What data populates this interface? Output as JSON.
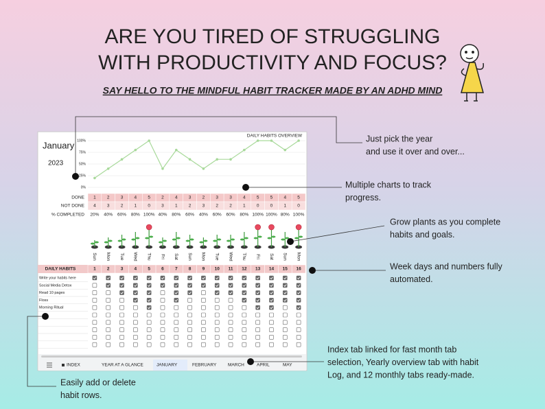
{
  "header": {
    "title_lines": [
      "ARE YOU TIRED OF STRUGGLING",
      "WITH PRODUCTIVITY AND FOCUS?"
    ],
    "subtitle": "SAY HELLO TO THE MINDFUL HABIT TRACKER MADE BY AN ADHD MIND"
  },
  "callouts": [
    {
      "lines": [
        "Just pick the year",
        "and use it over and over..."
      ]
    },
    {
      "lines": [
        "Multiple charts to track",
        "progress."
      ]
    },
    {
      "lines": [
        "Grow plants  as you complete",
        "habits and goals."
      ]
    },
    {
      "lines": [
        "Week days and numbers fully",
        "automated."
      ]
    },
    {
      "lines": [
        "Index tab linked for fast month tab",
        "selection, Yearly overview tab with habit",
        "Log, and 12 monthly tabs ready-made."
      ]
    },
    {
      "lines": [
        "Easily add or delete",
        "habit rows."
      ]
    }
  ],
  "sheet": {
    "month": "January",
    "year": "2023",
    "chart": {
      "type": "line",
      "title": "DAILY HABITS OVERVIEW",
      "color": "#a8d99a",
      "ylim": [
        0,
        100
      ],
      "yticks": [
        {
          "value": 0,
          "label": "0%"
        },
        {
          "value": 25,
          "label": "25%"
        },
        {
          "value": 50,
          "label": "50%"
        },
        {
          "value": 75,
          "label": "75%"
        },
        {
          "value": 100,
          "label": "100%"
        }
      ]
    },
    "summary": {
      "done_label": "DONE",
      "not_done_label": "NOT DONE",
      "pct_label": "% COMPLETED",
      "done": [
        1,
        2,
        3,
        4,
        5,
        2,
        4,
        3,
        2,
        3,
        3,
        4,
        5,
        5,
        4,
        5
      ],
      "not_done": [
        4,
        3,
        2,
        1,
        0,
        3,
        1,
        2,
        3,
        2,
        2,
        1,
        0,
        0,
        1,
        0
      ],
      "pct_completed": {
        "values": [
          20,
          40,
          60,
          80,
          100,
          40,
          80,
          60,
          40,
          60,
          60,
          80,
          100,
          100,
          80,
          100
        ],
        "value_labels": [
          "20%",
          "40%",
          "60%",
          "80%",
          "100%",
          "40%",
          "80%",
          "60%",
          "40%",
          "60%",
          "60%",
          "80%",
          "100%",
          "100%",
          "80%",
          "100%"
        ]
      }
    },
    "weekdays": [
      "Sun",
      "Mon",
      "Tue",
      "Wed",
      "Thu",
      "Fri",
      "Sat",
      "Sun",
      "Mon",
      "Tue",
      "Wed",
      "Thu",
      "Fri",
      "Sat",
      "Sun",
      "Mon"
    ],
    "days": [
      1,
      2,
      3,
      4,
      5,
      6,
      7,
      8,
      9,
      10,
      11,
      12,
      13,
      14,
      15,
      16
    ],
    "habits_label": "DAILY HABITS",
    "habits": [
      {
        "name": "Write your habits here",
        "checks": [
          1,
          1,
          1,
          1,
          1,
          1,
          1,
          1,
          1,
          1,
          1,
          1,
          1,
          1,
          1,
          1
        ]
      },
      {
        "name": "Social Media Detox",
        "checks": [
          0,
          1,
          1,
          1,
          1,
          1,
          1,
          1,
          1,
          1,
          1,
          1,
          1,
          1,
          1,
          1
        ]
      },
      {
        "name": "Read 10 pages",
        "checks": [
          0,
          0,
          1,
          1,
          1,
          0,
          1,
          1,
          0,
          1,
          1,
          1,
          1,
          1,
          1,
          1
        ]
      },
      {
        "name": "Floss",
        "checks": [
          0,
          0,
          0,
          1,
          1,
          0,
          1,
          0,
          0,
          0,
          0,
          1,
          1,
          1,
          1,
          1
        ]
      },
      {
        "name": "Morning Ritual",
        "checks": [
          0,
          0,
          0,
          0,
          1,
          0,
          0,
          0,
          0,
          0,
          0,
          0,
          1,
          1,
          0,
          1
        ]
      }
    ],
    "tabs": [
      "INDEX",
      "YEAR AT A GLANCE",
      "JANUARY",
      "FEBRUARY",
      "MARCH",
      "APRIL",
      "MAY"
    ],
    "active_tab": 2
  }
}
